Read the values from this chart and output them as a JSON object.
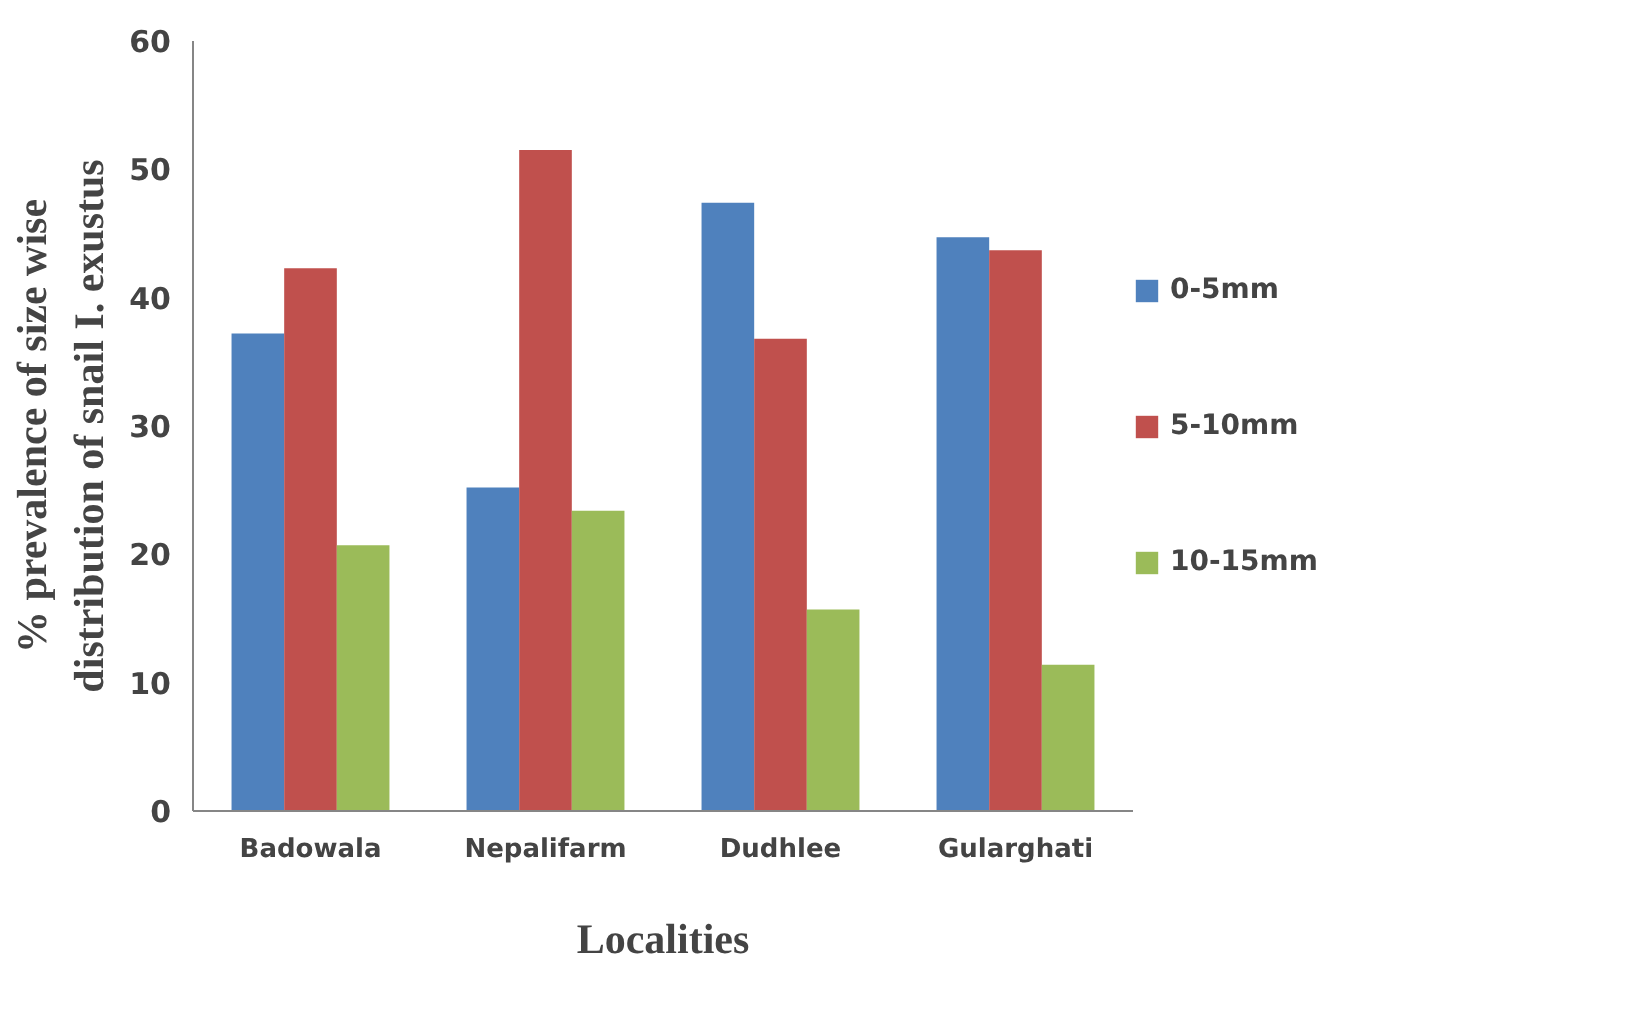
{
  "chart_data": {
    "type": "bar",
    "xlabel": "Localities",
    "ylabel": "% prevalence of size wise\ndistribution of snail I. exustus",
    "categories": [
      "Badowala",
      "Nepalifarm",
      "Dudhlee",
      "Gularghati"
    ],
    "series": [
      {
        "name": "0-5mm",
        "color": "#4f81bd",
        "values": [
          37.2,
          25.2,
          47.4,
          44.7
        ]
      },
      {
        "name": "5-10mm",
        "color": "#c0504d",
        "values": [
          42.3,
          51.5,
          36.8,
          43.7
        ]
      },
      {
        "name": "10-15mm",
        "color": "#9bbb59",
        "values": [
          20.7,
          23.4,
          15.7,
          11.4
        ]
      }
    ],
    "ylim": [
      0,
      60
    ],
    "yticks": [
      0,
      10,
      20,
      30,
      40,
      50,
      60
    ],
    "grid": false,
    "legend": "right"
  }
}
